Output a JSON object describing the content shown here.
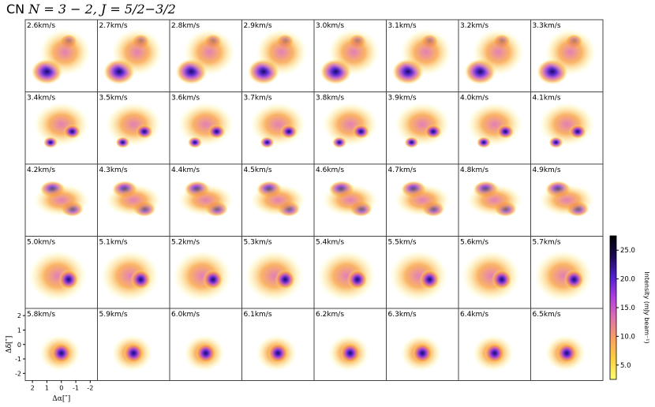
{
  "title": {
    "species": "CN",
    "transition": "N = 3 − 2, J = 5/2−3/2"
  },
  "colorbar": {
    "label": "Intensity (mJy beam⁻¹)",
    "ticks": [
      5.0,
      10.0,
      15.0,
      20.0,
      25.0
    ],
    "range": [
      2.5,
      27.5
    ],
    "colormap": [
      "#ffff70",
      "#ffd040",
      "#f9a060",
      "#e070b0",
      "#b040e0",
      "#5020d0",
      "#1a0a55",
      "#000000"
    ]
  },
  "axes": {
    "xlabel": "Δα[″]",
    "ylabel": "Δδ[″]",
    "xticks": [
      "2",
      "1",
      "0",
      "-1",
      "-2"
    ],
    "yticks": [
      "2",
      "1",
      "0",
      "-1",
      "-2"
    ]
  },
  "chart_data": {
    "type": "heatmap",
    "channel_unit": "km/s",
    "channels": [
      {
        "v": "2.6km/s"
      },
      {
        "v": "2.7km/s"
      },
      {
        "v": "2.8km/s"
      },
      {
        "v": "2.9km/s"
      },
      {
        "v": "3.0km/s"
      },
      {
        "v": "3.1km/s"
      },
      {
        "v": "3.2km/s"
      },
      {
        "v": "3.3km/s"
      },
      {
        "v": "3.4km/s"
      },
      {
        "v": "3.5km/s"
      },
      {
        "v": "3.6km/s"
      },
      {
        "v": "3.7km/s"
      },
      {
        "v": "3.8km/s"
      },
      {
        "v": "3.9km/s"
      },
      {
        "v": "4.0km/s"
      },
      {
        "v": "4.1km/s"
      },
      {
        "v": "4.2km/s"
      },
      {
        "v": "4.3km/s"
      },
      {
        "v": "4.4km/s"
      },
      {
        "v": "4.5km/s"
      },
      {
        "v": "4.6km/s"
      },
      {
        "v": "4.7km/s"
      },
      {
        "v": "4.8km/s"
      },
      {
        "v": "4.9km/s"
      },
      {
        "v": "5.0km/s"
      },
      {
        "v": "5.1km/s"
      },
      {
        "v": "5.2km/s"
      },
      {
        "v": "5.3km/s"
      },
      {
        "v": "5.4km/s"
      },
      {
        "v": "5.5km/s"
      },
      {
        "v": "5.6km/s"
      },
      {
        "v": "5.7km/s"
      },
      {
        "v": "5.8km/s"
      },
      {
        "v": "5.9km/s"
      },
      {
        "v": "6.0km/s"
      },
      {
        "v": "6.1km/s"
      },
      {
        "v": "6.2km/s"
      },
      {
        "v": "6.3km/s"
      },
      {
        "v": "6.4km/s"
      },
      {
        "v": "6.5km/s"
      }
    ],
    "xlim": [
      2.5,
      -2.5
    ],
    "ylim": [
      -2.5,
      2.5
    ]
  }
}
